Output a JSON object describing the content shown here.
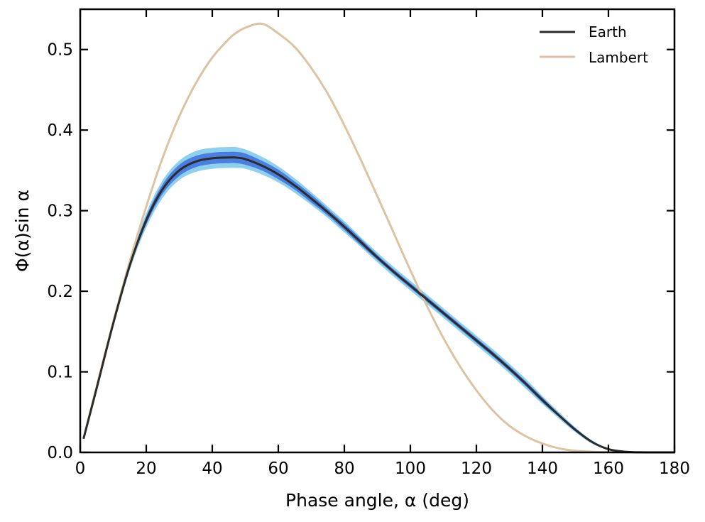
{
  "chart_data": {
    "type": "line",
    "xlabel": "Phase angle, α (deg)",
    "ylabel": "Φ(α)sin α",
    "xlim": [
      0,
      180
    ],
    "ylim": [
      0,
      0.55
    ],
    "xticks": [
      "0",
      "20",
      "40",
      "60",
      "80",
      "100",
      "120",
      "140",
      "160",
      "180"
    ],
    "yticks": [
      "0.0",
      "0.1",
      "0.2",
      "0.3",
      "0.4",
      "0.5"
    ],
    "x": [
      1,
      5,
      10,
      15,
      20,
      25,
      30,
      35,
      40,
      45,
      47,
      50,
      55,
      60,
      65,
      70,
      75,
      80,
      85,
      90,
      95,
      100,
      105,
      110,
      115,
      120,
      125,
      130,
      135,
      140,
      145,
      150,
      155,
      160,
      165,
      170,
      175,
      180
    ],
    "series": [
      {
        "name": "Earth",
        "color": "#2b2b2b",
        "values": [
          0.017,
          0.08,
          0.16,
          0.232,
          0.288,
          0.327,
          0.35,
          0.361,
          0.365,
          0.366,
          0.366,
          0.364,
          0.356,
          0.345,
          0.331,
          0.315,
          0.298,
          0.28,
          0.261,
          0.242,
          0.224,
          0.207,
          0.19,
          0.173,
          0.156,
          0.139,
          0.122,
          0.104,
          0.085,
          0.065,
          0.046,
          0.028,
          0.013,
          0.004,
          0.0008,
          0.0001,
          0.0,
          0.0
        ],
        "band_inner_halfwidth": [
          0.0,
          0.001,
          0.002,
          0.003,
          0.005,
          0.006,
          0.007,
          0.007,
          0.007,
          0.007,
          0.007,
          0.007,
          0.006,
          0.006,
          0.005,
          0.005,
          0.004,
          0.004,
          0.004,
          0.003,
          0.003,
          0.003,
          0.003,
          0.003,
          0.003,
          0.003,
          0.003,
          0.003,
          0.003,
          0.003,
          0.002,
          0.002,
          0.001,
          0.001,
          0.0,
          0.0,
          0.0,
          0.0
        ],
        "band_outer_halfwidth": [
          0.0,
          0.002,
          0.004,
          0.006,
          0.009,
          0.011,
          0.012,
          0.013,
          0.013,
          0.013,
          0.013,
          0.012,
          0.011,
          0.01,
          0.009,
          0.008,
          0.007,
          0.007,
          0.006,
          0.006,
          0.006,
          0.006,
          0.006,
          0.006,
          0.006,
          0.006,
          0.006,
          0.006,
          0.006,
          0.005,
          0.004,
          0.003,
          0.002,
          0.001,
          0.0005,
          0.0,
          0.0,
          0.0
        ],
        "band_inner_color": "#4a7fe0",
        "band_outer_color": "#8fd0ee"
      },
      {
        "name": "Lambert",
        "color": "#dcc3a1",
        "values": [
          0.017,
          0.082,
          0.162,
          0.237,
          0.305,
          0.366,
          0.417,
          0.458,
          0.49,
          0.513,
          0.52,
          0.527,
          0.532,
          0.52,
          0.503,
          0.477,
          0.445,
          0.406,
          0.363,
          0.318,
          0.272,
          0.226,
          0.182,
          0.142,
          0.107,
          0.077,
          0.052,
          0.033,
          0.02,
          0.011,
          0.005,
          0.002,
          0.0008,
          0.0002,
          0.0,
          0.0,
          0.0,
          0.0
        ]
      }
    ],
    "legend": {
      "placement": "top-right",
      "entries": [
        "Earth",
        "Lambert"
      ]
    },
    "grid": false
  }
}
